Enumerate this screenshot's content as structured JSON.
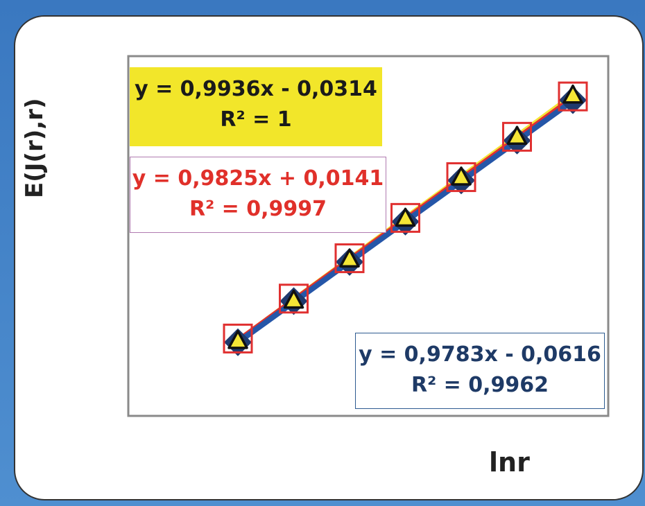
{
  "chart_data": {
    "type": "scatter",
    "xlabel": "lnr",
    "ylabel": "E(J(r),r)",
    "title": "",
    "grid": false,
    "legend": "none",
    "x": [
      1,
      2,
      3,
      4,
      5,
      6,
      7
    ],
    "series": [
      {
        "marker": "diamond",
        "color": "#1f3a6e",
        "values": [
          0.92,
          1.92,
          2.87,
          3.85,
          4.85,
          5.82,
          6.8
        ]
      },
      {
        "marker": "square",
        "color": "#e03030",
        "values": [
          1.01,
          1.98,
          2.96,
          3.94,
          4.93,
          5.91,
          6.89
        ]
      },
      {
        "marker": "triangle",
        "color": "#f5e636",
        "values": [
          0.97,
          1.95,
          2.95,
          3.94,
          4.94,
          5.93,
          6.93
        ]
      }
    ],
    "trendlines": [
      {
        "color": "#f5e636",
        "slope": 0.9936,
        "intercept": -0.0314
      },
      {
        "color": "#e03030",
        "slope": 0.9825,
        "intercept": 0.0141
      },
      {
        "color": "#2556a8",
        "slope": 0.9783,
        "intercept": -0.0616
      }
    ],
    "annotations": {
      "yellow": {
        "eq": "y = 0,9936x - 0,0314",
        "r2": "R² = 1"
      },
      "red": {
        "eq": "y = 0,9825x + 0,0141",
        "r2": "R² = 0,9997"
      },
      "blue": {
        "eq": "y = 0,9783x - 0,0616",
        "r2": "R² = 0,9962"
      }
    }
  }
}
